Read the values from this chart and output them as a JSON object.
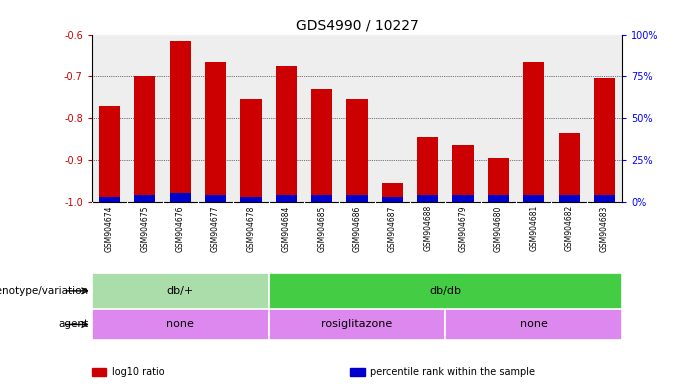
{
  "title": "GDS4990 / 10227",
  "samples": [
    "GSM904674",
    "GSM904675",
    "GSM904676",
    "GSM904677",
    "GSM904678",
    "GSM904684",
    "GSM904685",
    "GSM904686",
    "GSM904687",
    "GSM904688",
    "GSM904679",
    "GSM904680",
    "GSM904681",
    "GSM904682",
    "GSM904683"
  ],
  "log10_ratio": [
    -0.77,
    -0.7,
    -0.615,
    -0.665,
    -0.755,
    -0.675,
    -0.73,
    -0.755,
    -0.955,
    -0.845,
    -0.865,
    -0.895,
    -0.665,
    -0.835,
    -0.705
  ],
  "percentile": [
    3,
    4,
    5,
    4,
    3,
    4,
    4,
    4,
    3,
    4,
    4,
    4,
    4,
    4,
    4
  ],
  "bar_color": "#cc0000",
  "blue_color": "#0000cc",
  "ylim_left": [
    -1.0,
    -0.6
  ],
  "ylim_right": [
    0,
    100
  ],
  "yticks_left": [
    -1.0,
    -0.9,
    -0.8,
    -0.7,
    -0.6
  ],
  "yticks_right": [
    0,
    25,
    50,
    75,
    100
  ],
  "ytick_labels_right": [
    "0%",
    "25%",
    "50%",
    "75%",
    "100%"
  ],
  "bg_color": "#ffffff",
  "plot_bg": "#eeeeee",
  "xlabel_bg": "#d8d8d8",
  "genotype_groups": [
    {
      "label": "db/+",
      "start": 0,
      "end": 5,
      "color": "#aaddaa"
    },
    {
      "label": "db/db",
      "start": 5,
      "end": 15,
      "color": "#44cc44"
    }
  ],
  "agent_groups": [
    {
      "label": "none",
      "start": 0,
      "end": 5,
      "color": "#dd88ee"
    },
    {
      "label": "rosiglitazone",
      "start": 5,
      "end": 10,
      "color": "#dd88ee"
    },
    {
      "label": "none",
      "start": 10,
      "end": 15,
      "color": "#dd88ee"
    }
  ],
  "legend_items": [
    {
      "color": "#cc0000",
      "label": "log10 ratio"
    },
    {
      "color": "#0000cc",
      "label": "percentile rank within the sample"
    }
  ],
  "row_label_genotype": "genotype/variation",
  "row_label_agent": "agent",
  "bar_width": 0.6,
  "title_fontsize": 10,
  "tick_fontsize": 7,
  "label_fontsize": 7.5,
  "annot_fontsize": 8,
  "sample_fontsize": 5.5
}
